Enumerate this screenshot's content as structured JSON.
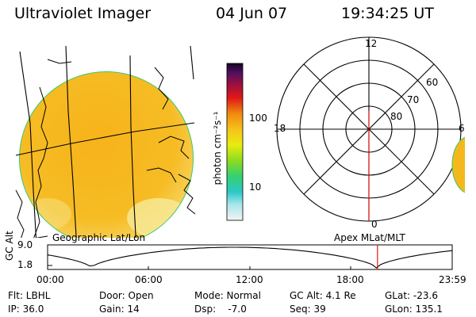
{
  "header": {
    "title": "Ultraviolet Imager",
    "date": "04 Jun 07",
    "time": "19:34:25 UT"
  },
  "colorbar": {
    "unit_label": "photon cm⁻²s⁻¹",
    "ticks": [
      "100",
      "10"
    ]
  },
  "polar": {
    "mlt_labels": [
      "12",
      "18",
      "6",
      "0"
    ],
    "lat_labels": [
      "60",
      "70",
      "80"
    ]
  },
  "panels": {
    "geo_label": "Geographic Lat/Lon",
    "apex_label": "Apex  MLat/MLT"
  },
  "altplot": {
    "ylabel": "GC Alt",
    "yticks": [
      "9.0",
      "1.8"
    ],
    "xticks": [
      "00:00",
      "06:00",
      "12:00",
      "18:00",
      "23:59"
    ],
    "current_time_marker_hours": 19.57,
    "alt_min_re": 1.8,
    "alt_max_re": 9.0
  },
  "info": {
    "flt": "Flt: LBHL",
    "door": "Door: Open",
    "mode": "Mode: Normal",
    "gc_alt": "GC Alt: 4.1 Re",
    "glat": "GLat: -23.6",
    "ip": "IP: 36.0",
    "gain": "Gain: 14",
    "dsp": "Dsp:    -7.0",
    "seq": "Seq: 39",
    "glon": "GLon: 135.1"
  },
  "colors": {
    "earth_fill": "#f5b81c",
    "marker": "#e00000",
    "rim": "#3cc86c"
  }
}
